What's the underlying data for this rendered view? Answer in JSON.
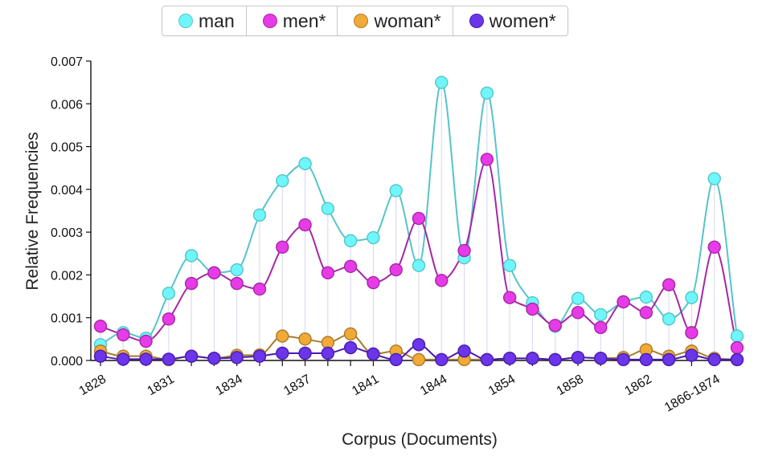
{
  "chart_data": {
    "type": "line",
    "xlabel": "Corpus (Documents)",
    "ylabel": "Relative Frequencies",
    "ylim": [
      0,
      0.007
    ],
    "y_ticks": [
      "0.000",
      "0.001",
      "0.002",
      "0.003",
      "0.004",
      "0.005",
      "0.006",
      "0.007"
    ],
    "x_tick_labels": [
      "1828",
      "1831",
      "1834",
      "1837",
      "1841",
      "1844",
      "1854",
      "1858",
      "1862",
      "1866-1874"
    ],
    "x_tick_every": 3,
    "point_count": 29,
    "legend_position": "top-center",
    "series": [
      {
        "name": "man",
        "color": "#5fe3e8",
        "fill": "#6ff6fb",
        "stroke": "#56c4c8",
        "values": [
          0.00037,
          0.00065,
          0.00052,
          0.00157,
          0.00245,
          0.00205,
          0.00212,
          0.0034,
          0.0042,
          0.0046,
          0.00355,
          0.0028,
          0.00287,
          0.00397,
          0.00222,
          0.0065,
          0.0024,
          0.00625,
          0.00222,
          0.00135,
          0.0008,
          0.00145,
          0.00107,
          0.00137,
          0.00148,
          0.00097,
          0.00147,
          0.00425,
          0.00057
        ]
      },
      {
        "name": "men*",
        "color": "#e63ae6",
        "fill": "#e83be8",
        "stroke": "#a527a5",
        "values": [
          0.0008,
          0.0006,
          0.00045,
          0.00097,
          0.0018,
          0.00205,
          0.0018,
          0.00167,
          0.00265,
          0.00317,
          0.00205,
          0.0022,
          0.00182,
          0.00212,
          0.00332,
          0.00187,
          0.00257,
          0.0047,
          0.00147,
          0.0012,
          0.00082,
          0.00112,
          0.00077,
          0.00137,
          0.00112,
          0.00177,
          0.00065,
          0.00265,
          0.0003
        ]
      },
      {
        "name": "woman*",
        "color": "#f0a935",
        "fill": "#f2aa36",
        "stroke": "#a87c2c",
        "values": [
          0.00022,
          0.0001,
          0.0001,
          2e-05,
          0.0001,
          5e-05,
          0.00012,
          0.00013,
          0.00057,
          0.0005,
          0.00042,
          0.00062,
          0.00015,
          0.00022,
          2e-05,
          2e-05,
          2e-05,
          2e-05,
          5e-05,
          5e-05,
          2e-05,
          7e-05,
          5e-05,
          7e-05,
          0.00025,
          0.0001,
          0.00022,
          5e-05,
          2e-05
        ]
      },
      {
        "name": "women*",
        "color": "#6a35e8",
        "fill": "#6b35ea",
        "stroke": "#4a1ab0",
        "values": [
          0.0001,
          3e-05,
          3e-05,
          3e-05,
          0.0001,
          5e-05,
          7e-05,
          0.0001,
          0.00017,
          0.00017,
          0.00017,
          0.0003,
          0.00015,
          2e-05,
          0.00037,
          2e-05,
          0.00022,
          2e-05,
          5e-05,
          5e-05,
          2e-05,
          7e-05,
          5e-05,
          2e-05,
          2e-05,
          2e-05,
          0.00012,
          2e-05,
          2e-05
        ]
      }
    ]
  }
}
